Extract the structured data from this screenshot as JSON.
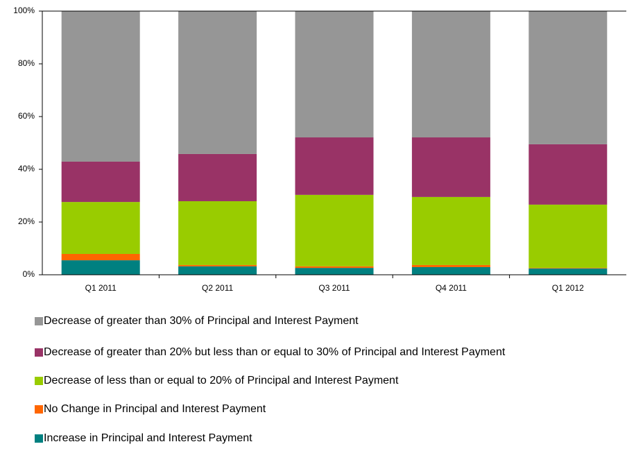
{
  "chart_data": {
    "type": "stacked_bar",
    "categories": [
      "Q1 2011",
      "Q2 2011",
      "Q3 2011",
      "Q4 2011",
      "Q1 2012"
    ],
    "series": [
      {
        "name": "Increase in Principal and Interest Payment",
        "color": "#008080",
        "values": [
          5.5,
          3.2,
          2.6,
          2.9,
          2.4
        ]
      },
      {
        "name": "No Change in Principal and Interest Payment",
        "color": "#ff6600",
        "values": [
          2.4,
          0.5,
          0.6,
          0.8,
          0.2
        ]
      },
      {
        "name": "Decrease of less than or equal to 20% of Principal and Interest Payment",
        "color": "#99cc00",
        "values": [
          19.7,
          24.2,
          27.1,
          25.8,
          24.0
        ]
      },
      {
        "name": "Decrease of greater than 20% but less than or equal to 30% of Principal and Interest Payment",
        "color": "#993366",
        "values": [
          15.3,
          17.9,
          21.8,
          22.6,
          22.9
        ]
      },
      {
        "name": "Decrease of greater than 30% of Principal and Interest Payment",
        "color": "#969696",
        "values": [
          57.1,
          54.2,
          47.9,
          47.9,
          50.5
        ]
      }
    ],
    "ylim": [
      0,
      100
    ],
    "yticks": [
      {
        "value": 0,
        "label": "0%"
      },
      {
        "value": 20,
        "label": "20%"
      },
      {
        "value": 40,
        "label": "40%"
      },
      {
        "value": 60,
        "label": "60%"
      },
      {
        "value": 80,
        "label": "80%"
      },
      {
        "value": 100,
        "label": "100%"
      }
    ],
    "grid": false,
    "legend": "bottom"
  }
}
